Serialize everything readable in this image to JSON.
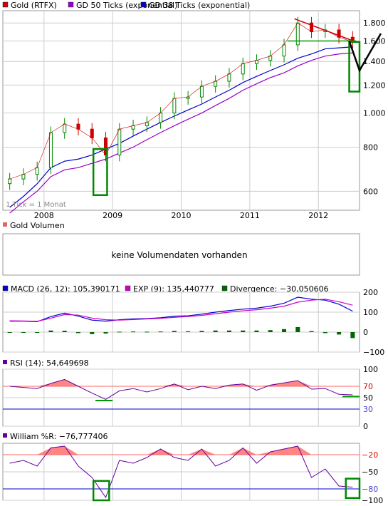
{
  "colors": {
    "gold": "#cc0000",
    "gd50": "#9900cc",
    "gd38": "#0000cc",
    "candle_up": "#008800",
    "candle_down": "#cc0000",
    "trendline": "#cc0000",
    "support": "#009900",
    "highlight_box": "#008800",
    "macd": "#0000cc",
    "exp": "#cc00cc",
    "divergence": "#006600",
    "rsi": "#660099",
    "rsi_fill": "#ff6666",
    "rsi_70": "#ff6666",
    "rsi_30": "#0000cc",
    "williams": "#660099",
    "grid": "#cccccc"
  },
  "price_panel": {
    "legend": [
      {
        "label": "Gold (RTFX)",
        "swatch": "#cc0000"
      },
      {
        "label": "GD 50 Ticks (exponential)",
        "swatch": "#9900cc"
      },
      {
        "label": "GD 38 Ticks (exponential)",
        "swatch": "#0000cc"
      }
    ],
    "note": "1 Tick = 1 Monat",
    "x_ticks": [
      "2008",
      "2009",
      "2010",
      "2011",
      "2012"
    ],
    "y_ticks": [
      "1.800",
      "1.600",
      "1.400",
      "1.200",
      "1.000",
      "800",
      "600"
    ]
  },
  "volume_panel": {
    "legend": {
      "label": "Gold Volumen",
      "swatch": "#dd6666"
    },
    "message": "keine Volumendaten vorhanden"
  },
  "macd_panel": {
    "legend": [
      {
        "label": "MACD (26, 12): 105,390171",
        "swatch": "#0000cc"
      },
      {
        "label": "EXP (9): 135,440777",
        "swatch": "#cc00cc"
      },
      {
        "label": "Divergence: −30,050606",
        "swatch": "#006600"
      }
    ],
    "y_ticks": [
      "200",
      "100",
      "0",
      "−100"
    ]
  },
  "rsi_panel": {
    "legend": {
      "label": "RSI (14): 54,649698",
      "swatch": "#660099"
    },
    "y_ticks": [
      "100",
      "70",
      "50",
      "30",
      "0"
    ]
  },
  "williams_panel": {
    "legend": {
      "label": "William %R: −76,777406",
      "swatch": "#660099"
    },
    "y_ticks": [
      "−20",
      "−50",
      "−80",
      "−100"
    ]
  },
  "chart_data": [
    {
      "type": "line",
      "title": "Gold (RTFX)",
      "note": "1 Tick = 1 Monat",
      "x": [
        2007.5,
        2007.7,
        2007.9,
        2008.1,
        2008.3,
        2008.5,
        2008.7,
        2008.9,
        2009.1,
        2009.3,
        2009.5,
        2009.7,
        2009.9,
        2010.1,
        2010.3,
        2010.5,
        2010.7,
        2010.9,
        2011.1,
        2011.3,
        2011.5,
        2011.7,
        2011.9,
        2012.1,
        2012.3,
        2012.5
      ],
      "xlim": [
        2007.4,
        2012.6
      ],
      "ylim": [
        530,
        1950
      ],
      "log_scale": true,
      "series": [
        {
          "name": "Gold (RTFX)",
          "values": [
            650,
            670,
            700,
            880,
            930,
            900,
            850,
            760,
            900,
            920,
            940,
            1000,
            1100,
            1110,
            1190,
            1230,
            1290,
            1380,
            1410,
            1450,
            1560,
            1800,
            1700,
            1720,
            1640,
            1590
          ]
        },
        {
          "name": "GD 50 Ticks (exponential)",
          "values": [
            520,
            560,
            600,
            660,
            690,
            700,
            720,
            740,
            770,
            800,
            840,
            880,
            920,
            960,
            1000,
            1050,
            1100,
            1160,
            1210,
            1260,
            1300,
            1360,
            1410,
            1450,
            1470,
            1480
          ]
        },
        {
          "name": "GD 38 Ticks (exponential)",
          "values": [
            540,
            580,
            630,
            700,
            730,
            740,
            760,
            790,
            820,
            860,
            900,
            940,
            980,
            1020,
            1060,
            1110,
            1160,
            1220,
            1270,
            1320,
            1370,
            1430,
            1470,
            1520,
            1530,
            1540
          ]
        }
      ],
      "support_level": 1600
    },
    {
      "type": "line",
      "title": "MACD",
      "ylim": [
        -100,
        200
      ],
      "x": [
        2007.5,
        2007.7,
        2007.9,
        2008.1,
        2008.3,
        2008.5,
        2008.7,
        2008.9,
        2009.1,
        2009.3,
        2009.5,
        2009.7,
        2009.9,
        2010.1,
        2010.3,
        2010.5,
        2010.7,
        2010.9,
        2011.1,
        2011.3,
        2011.5,
        2011.7,
        2011.9,
        2012.1,
        2012.3,
        2012.5
      ],
      "series": [
        {
          "name": "MACD (26, 12)",
          "values": [
            55,
            55,
            52,
            78,
            95,
            80,
            60,
            55,
            62,
            66,
            68,
            72,
            80,
            82,
            90,
            100,
            108,
            115,
            120,
            130,
            145,
            175,
            165,
            160,
            140,
            105
          ]
        },
        {
          "name": "EXP (9)",
          "values": [
            57,
            56,
            54,
            70,
            88,
            85,
            70,
            62,
            60,
            63,
            66,
            69,
            74,
            78,
            84,
            92,
            100,
            107,
            112,
            120,
            130,
            150,
            160,
            165,
            152,
            135
          ]
        },
        {
          "name": "Divergence",
          "values": [
            -2,
            -1,
            -2,
            8,
            7,
            -5,
            -10,
            -7,
            2,
            3,
            2,
            3,
            6,
            4,
            6,
            8,
            8,
            8,
            8,
            10,
            15,
            25,
            5,
            -5,
            -12,
            -30
          ]
        }
      ]
    },
    {
      "type": "line",
      "title": "RSI (14)",
      "ylim": [
        0,
        100
      ],
      "x": [
        2007.5,
        2007.7,
        2007.9,
        2008.1,
        2008.3,
        2008.5,
        2008.7,
        2008.9,
        2009.1,
        2009.3,
        2009.5,
        2009.7,
        2009.9,
        2010.1,
        2010.3,
        2010.5,
        2010.7,
        2010.9,
        2011.1,
        2011.3,
        2011.5,
        2011.7,
        2011.9,
        2012.1,
        2012.3,
        2012.5
      ],
      "series": [
        {
          "name": "RSI (14)",
          "values": [
            70,
            68,
            66,
            75,
            82,
            70,
            58,
            47,
            62,
            66,
            60,
            66,
            74,
            64,
            70,
            66,
            72,
            74,
            63,
            72,
            76,
            80,
            65,
            66,
            56,
            55
          ]
        }
      ],
      "levels": [
        70,
        30
      ]
    },
    {
      "type": "line",
      "title": "William %R",
      "ylim": [
        -100,
        0
      ],
      "x": [
        2007.5,
        2007.7,
        2007.9,
        2008.1,
        2008.3,
        2008.5,
        2008.7,
        2008.9,
        2009.1,
        2009.3,
        2009.5,
        2009.7,
        2009.9,
        2010.1,
        2010.3,
        2010.5,
        2010.7,
        2010.9,
        2011.1,
        2011.3,
        2011.5,
        2011.7,
        2011.9,
        2012.1,
        2012.3,
        2012.5
      ],
      "series": [
        {
          "name": "William %R",
          "values": [
            -35,
            -30,
            -40,
            -8,
            -5,
            -40,
            -60,
            -95,
            -30,
            -35,
            -25,
            -10,
            -25,
            -30,
            -10,
            -40,
            -30,
            -8,
            -35,
            -15,
            -10,
            -5,
            -60,
            -45,
            -75,
            -77
          ]
        }
      ],
      "levels": [
        -20,
        -80
      ]
    }
  ]
}
